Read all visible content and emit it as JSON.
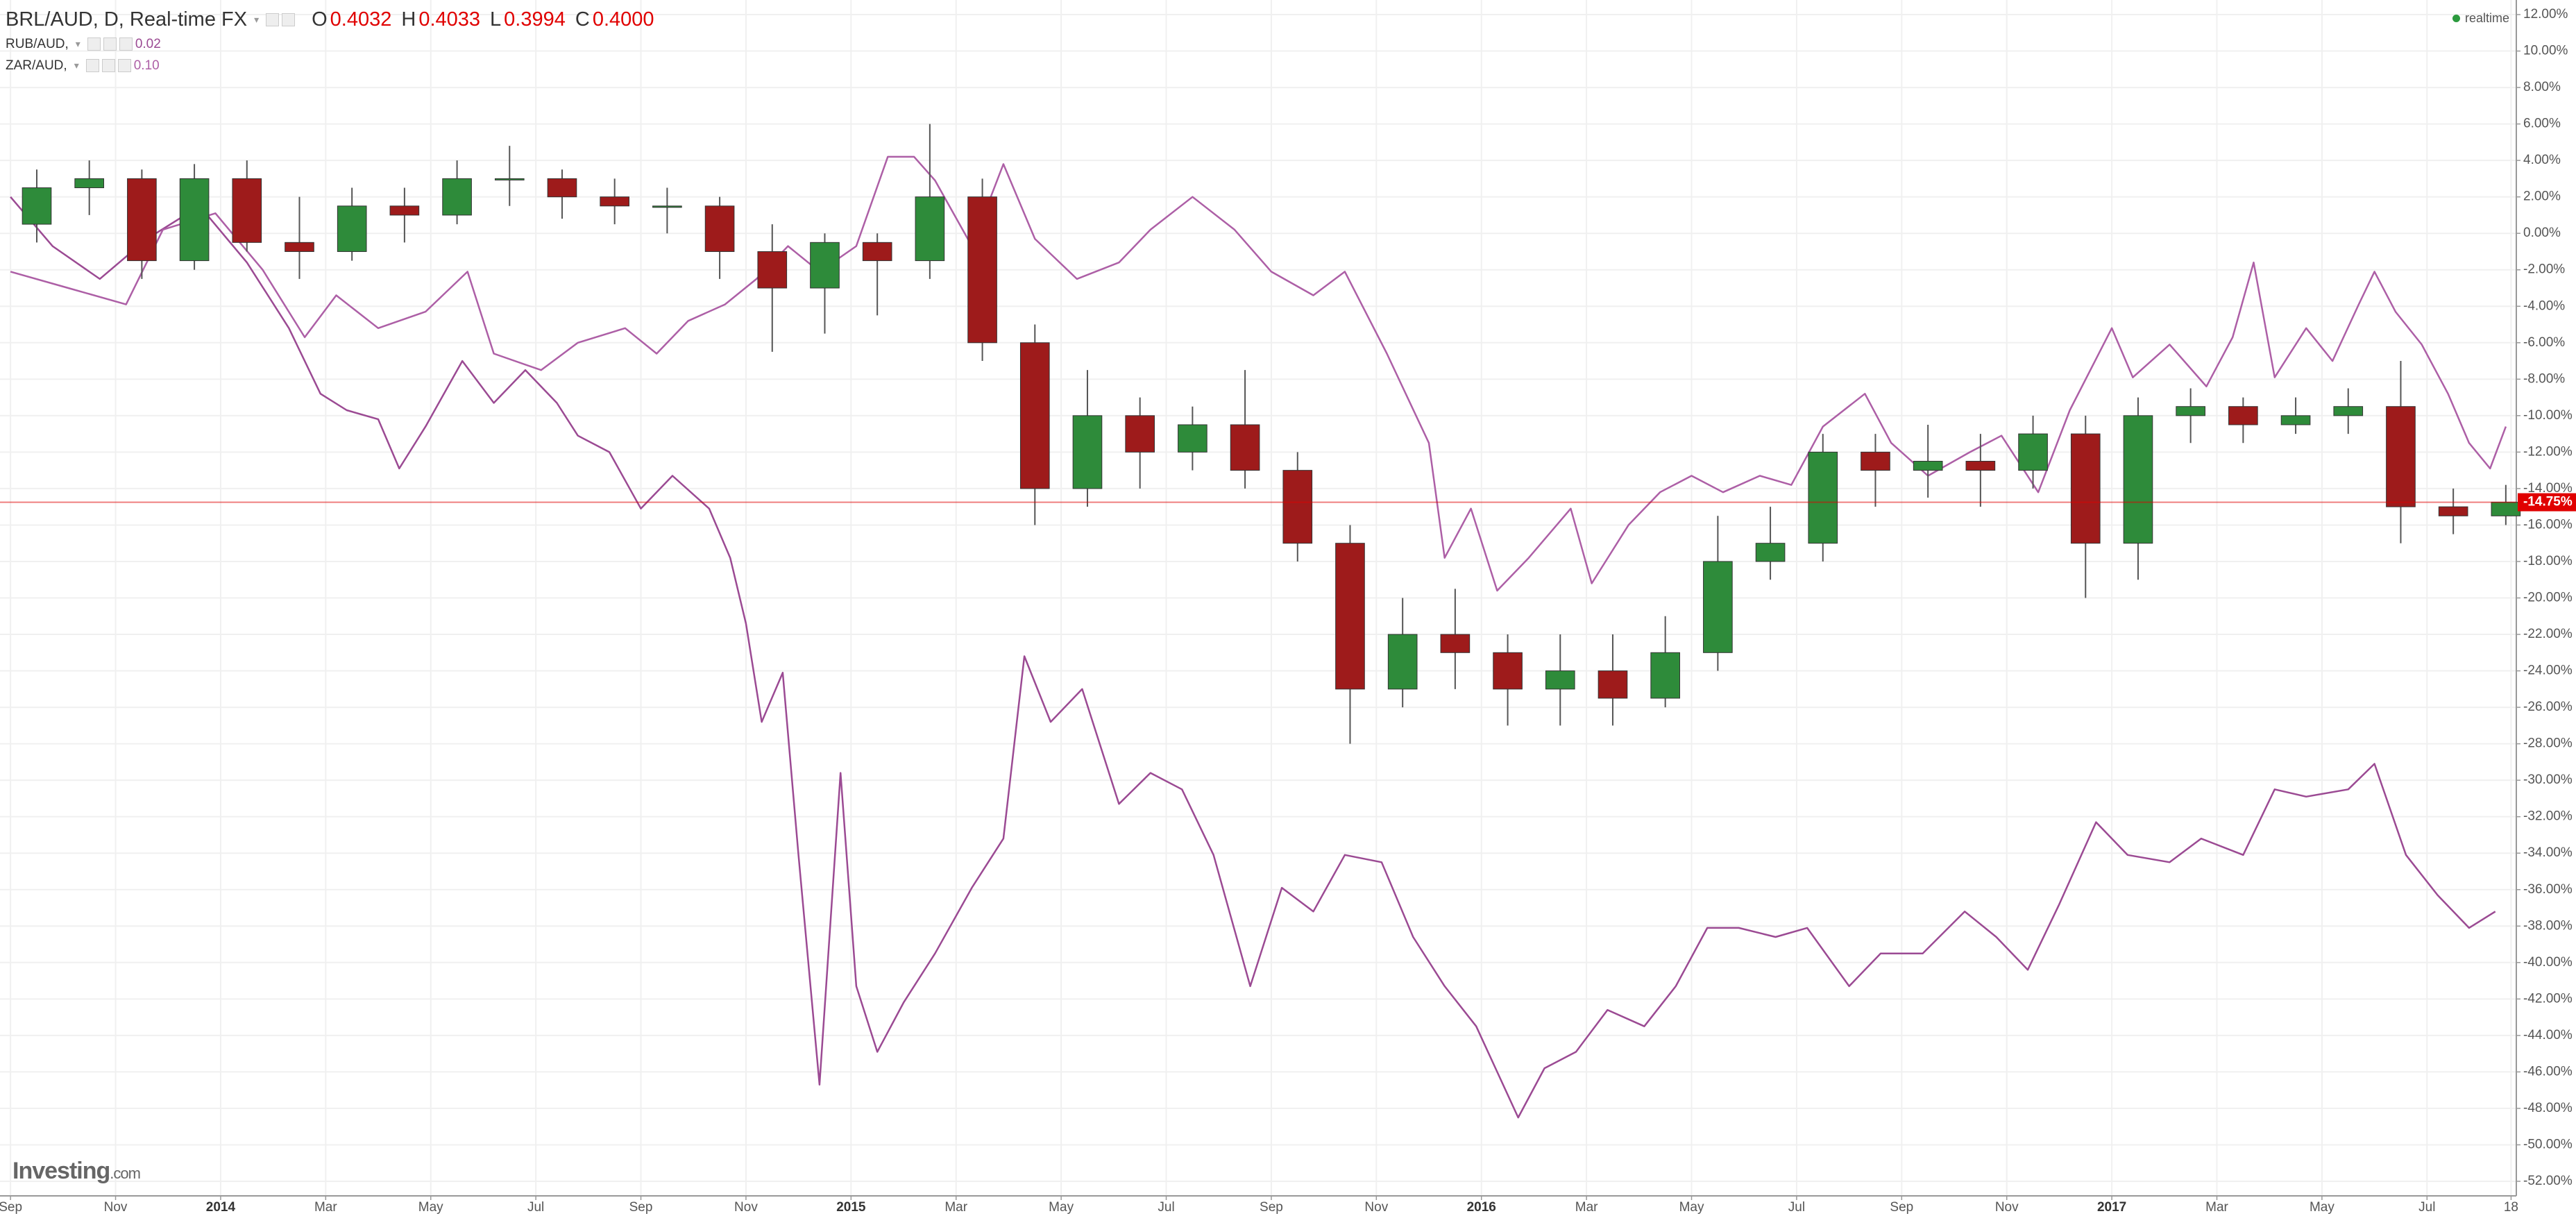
{
  "chart_data": {
    "type": "candlestick",
    "title": "BRL/AUD, D, Real-time FX",
    "ohlc": [
      {
        "label": "O",
        "value": "0.4032"
      },
      {
        "label": "H",
        "value": "0.4033"
      },
      {
        "label": "L",
        "value": "0.3994"
      },
      {
        "label": "C",
        "value": "0.4000"
      }
    ],
    "status": "realtime",
    "logo": "Investing",
    "logo_suffix": ".com",
    "xlim": [
      -0.2,
      47.7
    ],
    "xticks": [
      {
        "value": 0,
        "label": "Sep"
      },
      {
        "value": 2,
        "label": "Nov"
      },
      {
        "value": 4,
        "label": "2014"
      },
      {
        "value": 6,
        "label": "Mar"
      },
      {
        "value": 8,
        "label": "May"
      },
      {
        "value": 10,
        "label": "Jul"
      },
      {
        "value": 12,
        "label": "Sep"
      },
      {
        "value": 14,
        "label": "Nov"
      },
      {
        "value": 16,
        "label": "2015"
      },
      {
        "value": 18,
        "label": "Mar"
      },
      {
        "value": 20,
        "label": "May"
      },
      {
        "value": 22,
        "label": "Jul"
      },
      {
        "value": 24,
        "label": "Sep"
      },
      {
        "value": 26,
        "label": "Nov"
      },
      {
        "value": 28,
        "label": "2016"
      },
      {
        "value": 30,
        "label": "Mar"
      },
      {
        "value": 32,
        "label": "May"
      },
      {
        "value": 34,
        "label": "Jul"
      },
      {
        "value": 36,
        "label": "Sep"
      },
      {
        "value": 38,
        "label": "Nov"
      },
      {
        "value": 40,
        "label": "2017"
      },
      {
        "value": 42,
        "label": "Mar"
      },
      {
        "value": 44,
        "label": "May"
      },
      {
        "value": 46,
        "label": "Jul"
      },
      {
        "value": 47.6,
        "label": "18"
      }
    ],
    "year_ticks": [
      "2014",
      "2015",
      "2016",
      "2017"
    ],
    "ylim": [
      -52.8,
      12.8
    ],
    "yticks": [
      {
        "value": 12,
        "label": "12.00%"
      },
      {
        "value": 10,
        "label": "10.00%"
      },
      {
        "value": 8,
        "label": "8.00%"
      },
      {
        "value": 6,
        "label": "6.00%"
      },
      {
        "value": 4,
        "label": "4.00%"
      },
      {
        "value": 2,
        "label": "2.00%"
      },
      {
        "value": 0,
        "label": "0.00%"
      },
      {
        "value": -2,
        "label": "-2.00%"
      },
      {
        "value": -4,
        "label": "-4.00%"
      },
      {
        "value": -6,
        "label": "-6.00%"
      },
      {
        "value": -8,
        "label": "-8.00%"
      },
      {
        "value": -10,
        "label": "-10.00%"
      },
      {
        "value": -12,
        "label": "-12.00%"
      },
      {
        "value": -14,
        "label": "-14.00%"
      },
      {
        "value": -16,
        "label": "-16.00%"
      },
      {
        "value": -18,
        "label": "-18.00%"
      },
      {
        "value": -20,
        "label": "-20.00%"
      },
      {
        "value": -22,
        "label": "-22.00%"
      },
      {
        "value": -24,
        "label": "-24.00%"
      },
      {
        "value": -26,
        "label": "-26.00%"
      },
      {
        "value": -28,
        "label": "-28.00%"
      },
      {
        "value": -30,
        "label": "-30.00%"
      },
      {
        "value": -32,
        "label": "-32.00%"
      },
      {
        "value": -34,
        "label": "-34.00%"
      },
      {
        "value": -36,
        "label": "-36.00%"
      },
      {
        "value": -38,
        "label": "-38.00%"
      },
      {
        "value": -40,
        "label": "-40.00%"
      },
      {
        "value": -42,
        "label": "-42.00%"
      },
      {
        "value": -44,
        "label": "-44.00%"
      },
      {
        "value": -46,
        "label": "-46.00%"
      },
      {
        "value": -48,
        "label": "-48.00%"
      },
      {
        "value": -50,
        "label": "-50.00%"
      },
      {
        "value": -52,
        "label": "-52.00%"
      }
    ],
    "grid": true,
    "last_value": {
      "value": -14.75,
      "label": "-14.75%",
      "color": "#e00000"
    },
    "series": [
      {
        "name": "BRL/AUD, D, Real-time FX",
        "type": "candlestick",
        "up_color": "#2e8b3a",
        "down_color": "#9e1b1b",
        "x": [
          0.5,
          1.5,
          2.5,
          3.5,
          4.5,
          5.5,
          6.5,
          7.5,
          8.5,
          9.5,
          10.5,
          11.5,
          12.5,
          13.5,
          14.5,
          15.5,
          16.5,
          17.5,
          18.5,
          19.5,
          20.5,
          21.5,
          22.5,
          23.5,
          24.5,
          25.5,
          26.5,
          27.5,
          28.5,
          29.5,
          30.5,
          31.5,
          32.5,
          33.5,
          34.5,
          35.5,
          36.5,
          37.5,
          38.5,
          39.5,
          40.5,
          41.5,
          42.5,
          43.5,
          44.5,
          45.5,
          46.5,
          47.5
        ],
        "open": [
          0.5,
          2.5,
          3,
          -1.5,
          3,
          -0.5,
          -1,
          1.5,
          1,
          3,
          3,
          2,
          1.5,
          1.5,
          -1,
          -3,
          -0.5,
          -1.5,
          2,
          -6,
          -14,
          -10,
          -12,
          -10.5,
          -13,
          -17,
          -25,
          -22,
          -23,
          -25,
          -24,
          -25.5,
          -23,
          -18,
          -17,
          -12,
          -13,
          -12.5,
          -13,
          -11,
          -17,
          -10,
          -9.5,
          -10.5,
          -10,
          -9.5,
          -15,
          -15.5
        ],
        "high": [
          3.5,
          4,
          3.5,
          3.8,
          4,
          2,
          2.5,
          2.5,
          4,
          4.8,
          3.5,
          3,
          2.5,
          2,
          0.5,
          0,
          0,
          6,
          3,
          -5,
          -7.5,
          -9,
          -9.5,
          -7.5,
          -12,
          -16,
          -20,
          -19.5,
          -22,
          -22,
          -22,
          -21,
          -15.5,
          -15,
          -11,
          -11,
          -10.5,
          -11,
          -10,
          -10,
          -9,
          -8.5,
          -9,
          -9,
          -8.5,
          -7,
          -14,
          -13.8
        ],
        "low": [
          -0.5,
          1,
          -2.5,
          -2,
          -1,
          -2.5,
          -1.5,
          -0.5,
          0.5,
          1.5,
          0.8,
          0.5,
          0,
          -2.5,
          -6.5,
          -5.5,
          -4.5,
          -2.5,
          -7,
          -16,
          -15,
          -14,
          -13,
          -14,
          -18,
          -28,
          -26,
          -25,
          -27,
          -27,
          -27,
          -26,
          -24,
          -19,
          -18,
          -15,
          -14.5,
          -15,
          -14,
          -20,
          -19,
          -11.5,
          -11.5,
          -11,
          -11,
          -17,
          -16.5,
          -16
        ],
        "close": [
          2.5,
          3,
          -1.5,
          3,
          -0.5,
          -1,
          1.5,
          1,
          3,
          3,
          2,
          1.5,
          1.5,
          -1,
          -3,
          -0.5,
          -1.5,
          2,
          -6,
          -14,
          -10,
          -12,
          -10.5,
          -13,
          -17,
          -25,
          -22,
          -23,
          -25,
          -24,
          -25.5,
          -23,
          -18,
          -17,
          -12,
          -13,
          -12.5,
          -13,
          -11,
          -17,
          -10,
          -9.5,
          -10.5,
          -10,
          -9.5,
          -15,
          -15.5,
          -14.75
        ]
      },
      {
        "name": "RUB/AUD,",
        "type": "line",
        "color": "#9b4a93",
        "legend_value": "0.02",
        "x": [
          0,
          0.8,
          1.7,
          2.6,
          3.6,
          4.5,
          5.3,
          5.9,
          6.4,
          7,
          7.4,
          7.9,
          8.6,
          9.2,
          9.8,
          10.4,
          10.8,
          11.4,
          12,
          12.6,
          13.3,
          13.7,
          14,
          14.3,
          14.7,
          15,
          15.4,
          15.8,
          16.1,
          16.5,
          17,
          17.6,
          18.3,
          18.9,
          19.3,
          19.8,
          20.4,
          21.1,
          21.7,
          22.3,
          22.9,
          23.6,
          24.2,
          24.8,
          25.4,
          26.1,
          26.7,
          27.3,
          27.9,
          28.7,
          29.2,
          29.8,
          30.4,
          31.1,
          31.7,
          32.3,
          32.9,
          33.6,
          34.2,
          35,
          35.6,
          36.4,
          37.2,
          37.8,
          38.4,
          39,
          39.7,
          40.3,
          41.1,
          41.7,
          42.5,
          43.1,
          43.7,
          44.5,
          45,
          45.6,
          46.2,
          46.8,
          47.3
        ],
        "values": [
          2,
          -0.7,
          -2.5,
          -0.3,
          1.5,
          -1.6,
          -5.2,
          -8.8,
          -9.7,
          -10.2,
          -12.9,
          -10.6,
          -7,
          -9.3,
          -7.5,
          -9.3,
          -11.1,
          -12,
          -15.1,
          -13.3,
          -15.1,
          -17.8,
          -21.4,
          -26.8,
          -24.1,
          -34.1,
          -46.7,
          -29.6,
          -41.3,
          -44.9,
          -42.2,
          -39.5,
          -35.9,
          -33.2,
          -23.2,
          -26.8,
          -25,
          -31.3,
          -29.6,
          -30.5,
          -34.1,
          -41.3,
          -35.9,
          -37.2,
          -34.1,
          -34.5,
          -38.6,
          -41.3,
          -43.5,
          -48.5,
          -45.8,
          -44.9,
          -42.6,
          -43.5,
          -41.3,
          -38.1,
          -38.1,
          -38.6,
          -38.1,
          -41.3,
          -39.5,
          -39.5,
          -37.2,
          -38.6,
          -40.4,
          -36.8,
          -32.3,
          -34.1,
          -34.5,
          -33.2,
          -34.1,
          -30.5,
          -30.9,
          -30.5,
          -29.1,
          -34.1,
          -36.3,
          -38.1,
          -37.2
        ]
      },
      {
        "name": "ZAR/AUD,",
        "type": "line",
        "color": "#ad5fa6",
        "legend_value": "0.10",
        "x": [
          0,
          1.1,
          2.2,
          2.9,
          3.9,
          4.8,
          5.6,
          6.2,
          7,
          7.9,
          8.7,
          9.2,
          10.1,
          10.8,
          11.7,
          12.3,
          12.9,
          13.6,
          14.2,
          14.8,
          15.4,
          16.1,
          16.7,
          17.2,
          17.6,
          18.3,
          18.9,
          19.5,
          20.3,
          21.1,
          21.7,
          22.5,
          23.3,
          24,
          24.8,
          25.4,
          26.2,
          27,
          27.3,
          27.8,
          28.3,
          28.9,
          29.7,
          30.1,
          30.8,
          31.4,
          32,
          32.6,
          33.3,
          33.9,
          34.5,
          35.3,
          35.8,
          36.5,
          37.3,
          37.9,
          38.6,
          39.2,
          40,
          40.4,
          41.1,
          41.8,
          42.3,
          42.7,
          43.1,
          43.7,
          44.2,
          44.7,
          45,
          45.4,
          45.9,
          46.4,
          46.8,
          47.2,
          47.5
        ],
        "values": [
          -2.1,
          -3,
          -3.9,
          0.2,
          1.1,
          -2,
          -5.7,
          -3.4,
          -5.2,
          -4.3,
          -2.1,
          -6.6,
          -7.5,
          -6,
          -5.2,
          -6.6,
          -4.8,
          -3.9,
          -2.5,
          -0.7,
          -2.1,
          -0.7,
          4.2,
          4.2,
          2.9,
          -0.7,
          3.8,
          -0.3,
          -2.5,
          -1.6,
          0.2,
          2,
          0.2,
          -2.1,
          -3.4,
          -2.1,
          -6.6,
          -11.5,
          -17.8,
          -15.1,
          -19.6,
          -17.8,
          -15.1,
          -19.2,
          -16,
          -14.2,
          -13.3,
          -14.2,
          -13.3,
          -13.8,
          -10.6,
          -8.8,
          -11.5,
          -13.3,
          -12,
          -11.1,
          -14.2,
          -9.7,
          -5.2,
          -7.9,
          -6.1,
          -8.4,
          -5.7,
          -1.6,
          -7.9,
          -5.2,
          -7,
          -3.9,
          -2.1,
          -4.3,
          -6.1,
          -8.8,
          -11.5,
          -12.9,
          -10.6
        ]
      }
    ]
  }
}
